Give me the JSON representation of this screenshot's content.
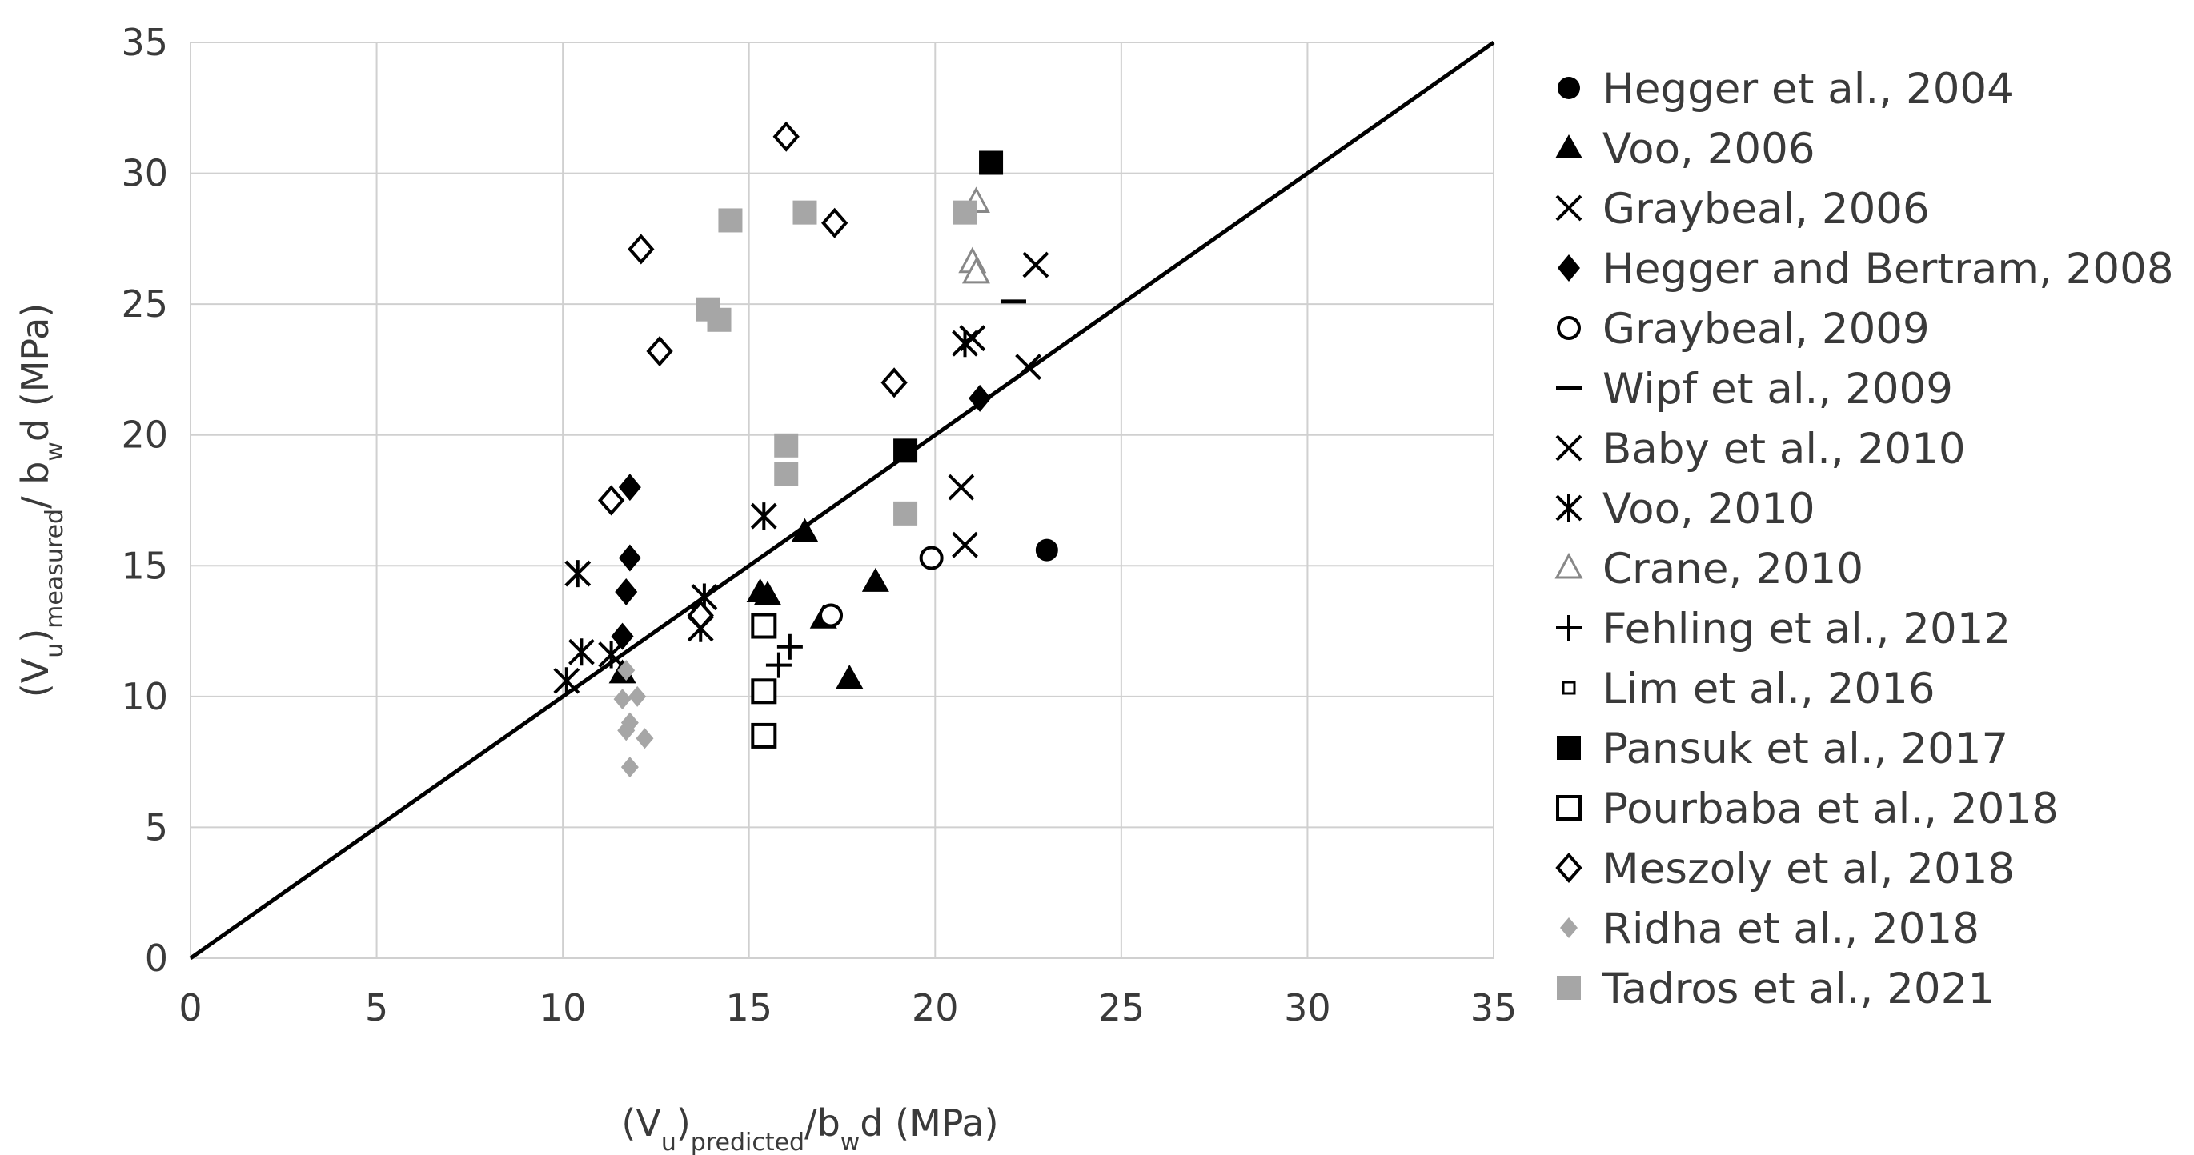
{
  "chart_data": {
    "type": "scatter",
    "title": "",
    "xlabel_parts": [
      {
        "text": "(V",
        "sub": false
      },
      {
        "text": "u",
        "sub": true
      },
      {
        "text": ")",
        "sub": false
      },
      {
        "text": "predicted",
        "sub": true
      },
      {
        "text": "/b",
        "sub": false
      },
      {
        "text": "w",
        "sub": true
      },
      {
        "text": "d (MPa)",
        "sub": false
      }
    ],
    "ylabel_parts": [
      {
        "text": "(V",
        "sub": false
      },
      {
        "text": "u",
        "sub": true
      },
      {
        "text": ")",
        "sub": false
      },
      {
        "text": "measured",
        "sub": true
      },
      {
        "text": "/ b",
        "sub": false
      },
      {
        "text": "w",
        "sub": true
      },
      {
        "text": "d (MPa)",
        "sub": false
      }
    ],
    "xlim": [
      0,
      35
    ],
    "ylim": [
      0,
      35
    ],
    "xticks": [
      0,
      5,
      10,
      15,
      20,
      25,
      30,
      35
    ],
    "yticks": [
      0,
      5,
      10,
      15,
      20,
      25,
      30,
      35
    ],
    "grid": true,
    "legend_position": "right",
    "reference_line": {
      "name": "equality line",
      "points": [
        [
          0,
          0
        ],
        [
          35,
          35
        ]
      ],
      "color": "#000000"
    },
    "series": [
      {
        "name": "Hegger et al., 2004",
        "marker": "circle-filled",
        "color": "#000000",
        "points": [
          [
            23.0,
            15.6
          ]
        ]
      },
      {
        "name": "Voo, 2006",
        "marker": "triangle-filled",
        "color": "#000000",
        "points": [
          [
            11.6,
            10.9
          ],
          [
            15.3,
            14.0
          ],
          [
            15.5,
            13.9
          ],
          [
            16.5,
            16.3
          ],
          [
            17.0,
            13.0
          ],
          [
            17.7,
            10.7
          ],
          [
            18.4,
            14.4
          ]
        ]
      },
      {
        "name": "Graybeal, 2006",
        "marker": "x",
        "color": "#000000",
        "points": [
          [
            20.8,
            15.8
          ],
          [
            22.7,
            26.5
          ]
        ]
      },
      {
        "name": "Hegger and Bertram, 2008",
        "marker": "diamond-filled",
        "color": "#000000",
        "points": [
          [
            11.6,
            12.3
          ],
          [
            11.7,
            14.0
          ],
          [
            11.8,
            15.3
          ],
          [
            11.8,
            18.0
          ],
          [
            21.2,
            21.4
          ]
        ]
      },
      {
        "name": "Graybeal, 2009",
        "marker": "circle-open",
        "color": "#000000",
        "points": [
          [
            19.9,
            15.3
          ],
          [
            17.2,
            13.1
          ]
        ]
      },
      {
        "name": "Wipf et al., 2009",
        "marker": "dash",
        "color": "#000000",
        "points": [
          [
            22.1,
            25.1
          ]
        ]
      },
      {
        "name": "Baby et al., 2010",
        "marker": "x",
        "color": "#000000",
        "points": [
          [
            20.7,
            18.0
          ],
          [
            21.0,
            23.7
          ],
          [
            22.5,
            22.6
          ]
        ]
      },
      {
        "name": "Voo, 2010",
        "marker": "asterisk",
        "color": "#000000",
        "points": [
          [
            10.1,
            10.6
          ],
          [
            10.5,
            11.7
          ],
          [
            10.4,
            14.7
          ],
          [
            11.3,
            11.6
          ],
          [
            13.7,
            12.6
          ],
          [
            13.8,
            13.8
          ],
          [
            15.4,
            16.9
          ],
          [
            20.8,
            23.5
          ]
        ]
      },
      {
        "name": "Crane, 2010",
        "marker": "triangle-open",
        "color": "#888888",
        "points": [
          [
            21.1,
            28.9
          ],
          [
            21.0,
            26.6
          ],
          [
            21.1,
            26.2
          ]
        ]
      },
      {
        "name": "Fehling et al., 2012",
        "marker": "plus",
        "color": "#000000",
        "points": [
          [
            15.8,
            11.2
          ],
          [
            16.1,
            11.9
          ]
        ]
      },
      {
        "name": "Lim et al., 2016",
        "marker": "square-open-small",
        "color": "#000000",
        "points": []
      },
      {
        "name": "Pansuk et al., 2017",
        "marker": "square-filled",
        "color": "#000000",
        "points": [
          [
            19.2,
            19.4
          ],
          [
            21.5,
            30.4
          ]
        ]
      },
      {
        "name": "Pourbaba et al., 2018",
        "marker": "square-open",
        "color": "#000000",
        "points": [
          [
            15.4,
            12.7
          ],
          [
            15.4,
            10.2
          ],
          [
            15.4,
            8.5
          ]
        ]
      },
      {
        "name": "Meszoly et al, 2018",
        "marker": "diamond-open",
        "color": "#000000",
        "points": [
          [
            11.3,
            17.5
          ],
          [
            12.1,
            27.1
          ],
          [
            12.6,
            23.2
          ],
          [
            13.7,
            13.1
          ],
          [
            16.0,
            31.4
          ],
          [
            17.3,
            28.1
          ],
          [
            18.9,
            22.0
          ]
        ]
      },
      {
        "name": "Ridha et al., 2018",
        "marker": "diamond-filled-small",
        "color": "#a6a6a6",
        "points": [
          [
            11.7,
            11.0
          ],
          [
            11.6,
            9.9
          ],
          [
            11.8,
            9.0
          ],
          [
            12.0,
            10.0
          ],
          [
            11.7,
            8.7
          ],
          [
            12.2,
            8.4
          ],
          [
            11.8,
            7.3
          ]
        ]
      },
      {
        "name": "Tadros et al., 2021",
        "marker": "square-filled",
        "color": "#a6a6a6",
        "points": [
          [
            14.5,
            28.2
          ],
          [
            13.9,
            24.8
          ],
          [
            14.2,
            24.4
          ],
          [
            16.0,
            19.6
          ],
          [
            16.0,
            18.5
          ],
          [
            16.5,
            28.5
          ],
          [
            19.2,
            17.0
          ],
          [
            20.8,
            28.5
          ]
        ]
      }
    ]
  }
}
